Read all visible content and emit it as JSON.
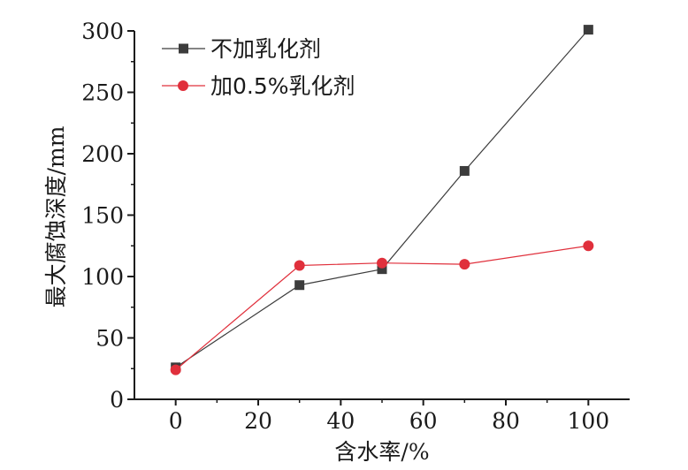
{
  "chart_data": {
    "type": "line",
    "xlabel": "含水率/%",
    "ylabel": "最大腐蚀深度/mm",
    "xlim": [
      -10,
      110
    ],
    "ylim": [
      0,
      300
    ],
    "xticks": [
      0,
      20,
      40,
      60,
      80,
      100
    ],
    "yticks": [
      0,
      50,
      100,
      150,
      200,
      250,
      300
    ],
    "legend_position": "top-left",
    "grid": false,
    "series": [
      {
        "name": "不加乳化剂",
        "marker": "square",
        "color": "#3c3c3c",
        "x": [
          0,
          30,
          50,
          70,
          100
        ],
        "y": [
          26,
          93,
          106,
          186,
          301
        ]
      },
      {
        "name": "加0.5%乳化剂",
        "marker": "circle",
        "color": "#e0303c",
        "x": [
          0,
          30,
          50,
          70,
          100
        ],
        "y": [
          24,
          109,
          111,
          110,
          125
        ]
      }
    ]
  }
}
